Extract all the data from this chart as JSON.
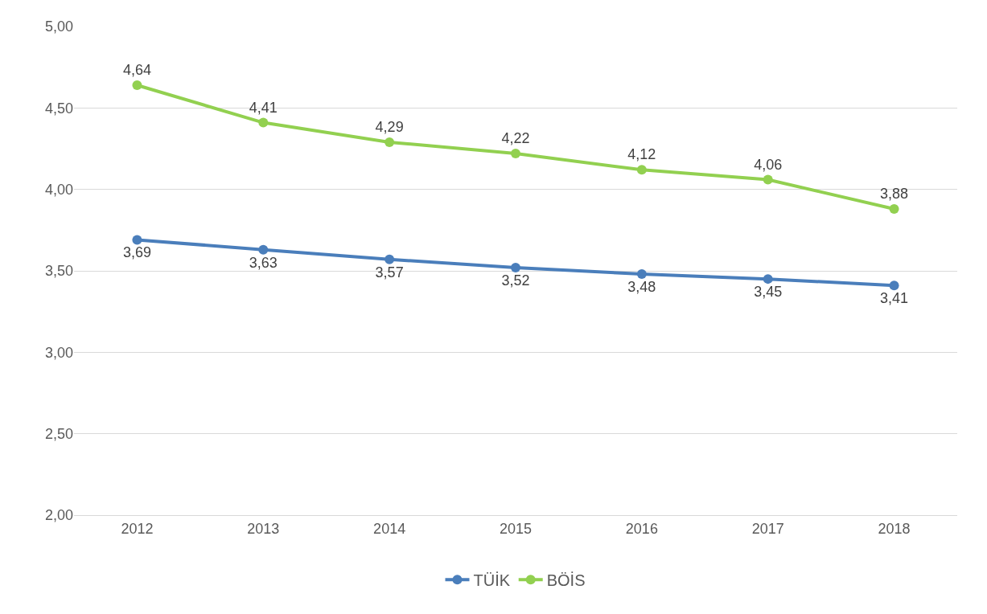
{
  "chart_data": {
    "type": "line",
    "categories": [
      "2012",
      "2013",
      "2014",
      "2015",
      "2016",
      "2017",
      "2018"
    ],
    "series": [
      {
        "name": "TÜİK",
        "color": "#4a7ebb",
        "values": [
          3.69,
          3.63,
          3.57,
          3.52,
          3.48,
          3.45,
          3.41
        ],
        "value_labels": [
          "3,69",
          "3,63",
          "3,57",
          "3,52",
          "3,48",
          "3,45",
          "3,41"
        ]
      },
      {
        "name": "BÖİS",
        "color": "#92d050",
        "values": [
          4.64,
          4.41,
          4.29,
          4.22,
          4.12,
          4.06,
          3.88
        ],
        "value_labels": [
          "4,64",
          "4,41",
          "4,29",
          "4,22",
          "4,12",
          "4,06",
          "3,88"
        ]
      }
    ],
    "ylim": [
      2,
      5
    ],
    "yticks": [
      {
        "value": 2,
        "label": "2,00"
      },
      {
        "value": 2.5,
        "label": "2,50"
      },
      {
        "value": 3,
        "label": "3,00"
      },
      {
        "value": 3.5,
        "label": "3,50"
      },
      {
        "value": 4,
        "label": "4,00"
      },
      {
        "value": 4.5,
        "label": "4,50"
      },
      {
        "value": 5,
        "label": "5,00"
      }
    ],
    "grid": "y",
    "legend": "bottom",
    "marker": "circle",
    "line_style": "solid"
  }
}
